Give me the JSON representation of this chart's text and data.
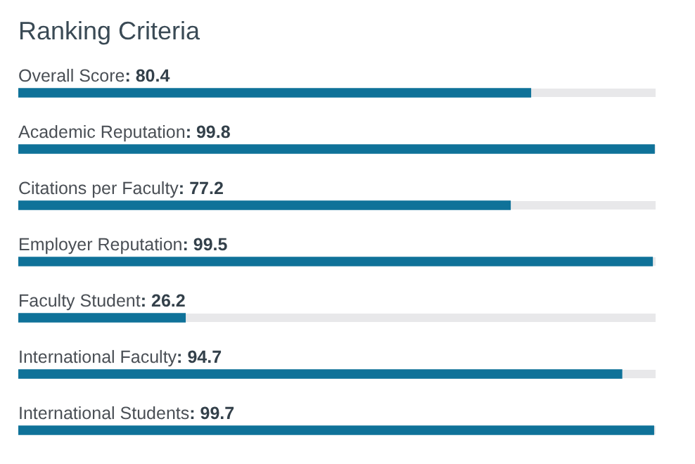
{
  "chart_data": {
    "type": "bar",
    "orientation": "horizontal",
    "title": "Ranking Criteria",
    "categories": [
      "Overall Score",
      "Academic Reputation",
      "Citations per Faculty",
      "Employer Reputation",
      "Faculty Student",
      "International Faculty",
      "International Students"
    ],
    "values": [
      80.4,
      99.8,
      77.2,
      99.5,
      26.2,
      94.7,
      99.7
    ],
    "value_labels": [
      ": 80.4",
      ": 99.8",
      ": 77.2",
      ": 99.5",
      ": 26.2",
      ": 94.7",
      ": 99.7"
    ],
    "color": "#0f7299",
    "tick_labels": false,
    "legend": false
  }
}
